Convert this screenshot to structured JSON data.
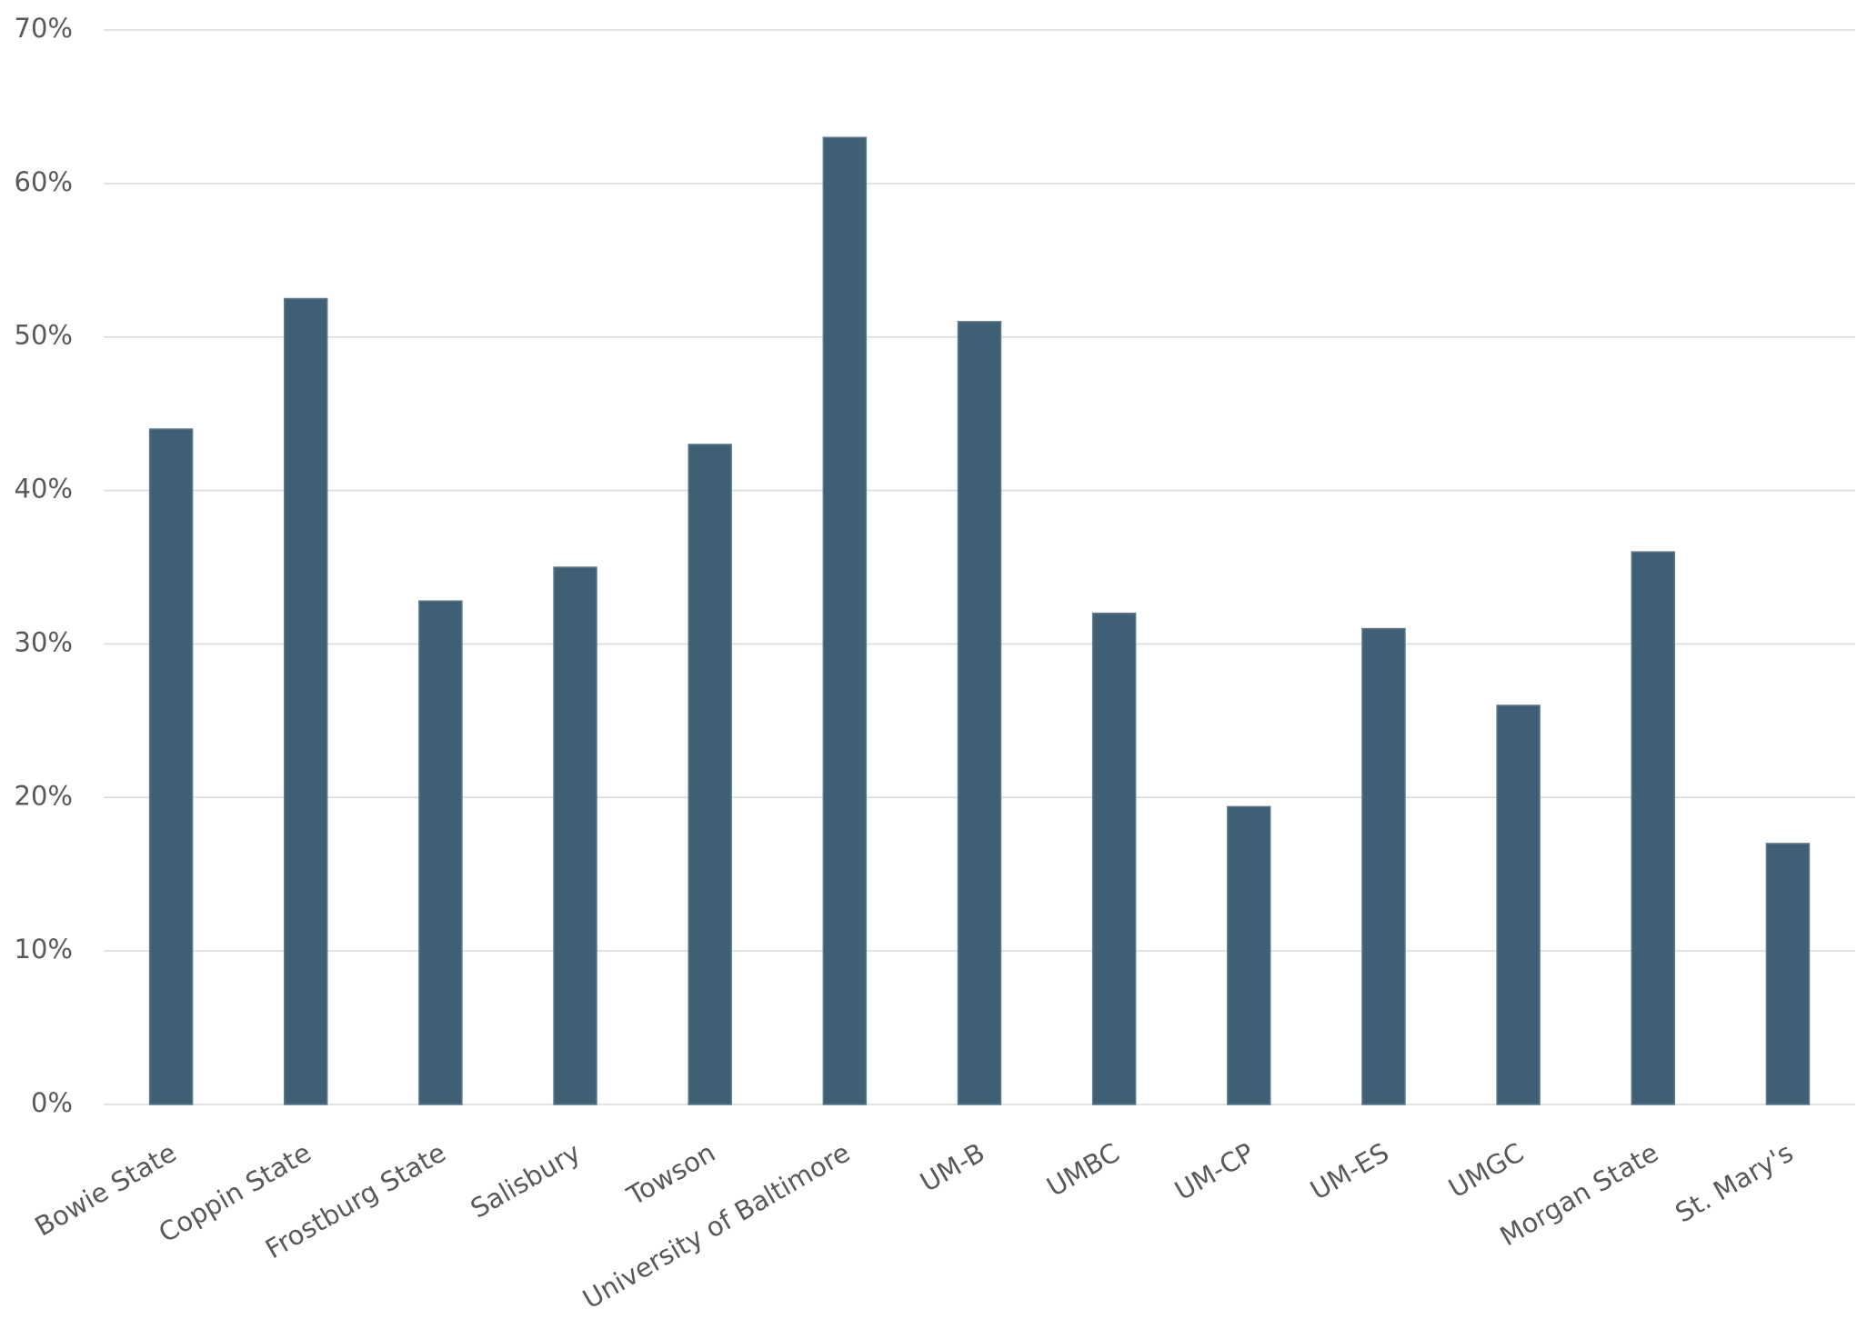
{
  "chart_data": {
    "type": "bar",
    "categories": [
      "Bowie State",
      "Coppin State",
      "Frostburg State",
      "Salisbury",
      "Towson",
      "University of Baltimore",
      "UM-B",
      "UMBC",
      "UM-CP",
      "UM-ES",
      "UMGC",
      "Morgan State",
      "St. Mary's"
    ],
    "values": [
      44,
      52.5,
      32.8,
      35,
      43,
      63,
      51,
      32,
      19.4,
      31,
      26,
      36,
      17
    ],
    "color": "#3f5f75",
    "ylim": [
      0,
      70
    ],
    "yticks": [
      {
        "value": 0,
        "label": "0%"
      },
      {
        "value": 10,
        "label": "10%"
      },
      {
        "value": 20,
        "label": "20%"
      },
      {
        "value": 30,
        "label": "30%"
      },
      {
        "value": 40,
        "label": "40%"
      },
      {
        "value": 50,
        "label": "50%"
      },
      {
        "value": 60,
        "label": "60%"
      },
      {
        "value": 70,
        "label": "70%"
      }
    ],
    "grid": true
  }
}
